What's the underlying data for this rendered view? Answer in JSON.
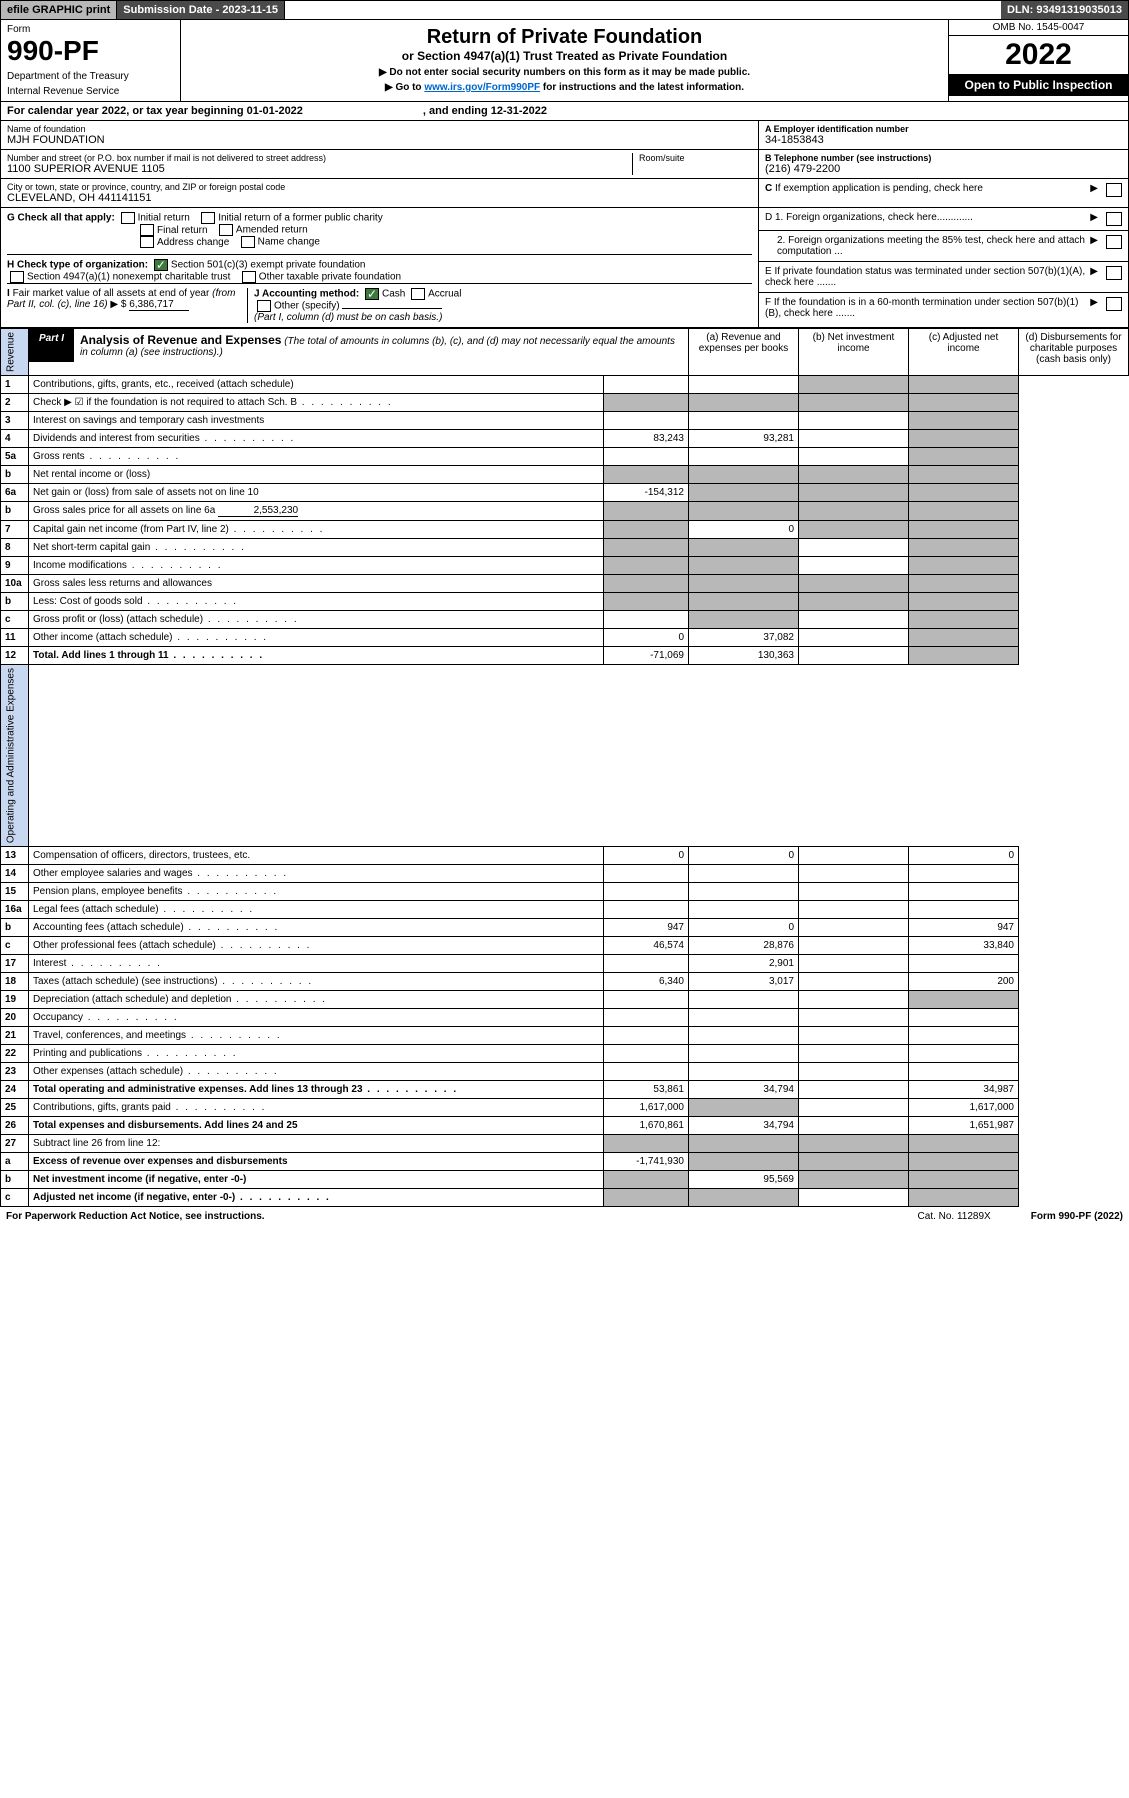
{
  "topbar": {
    "efile": "efile GRAPHIC print",
    "subdate_lbl": "Submission Date - 2023-11-15",
    "dln": "DLN: 93491319035013"
  },
  "hdr": {
    "form": "Form",
    "num": "990-PF",
    "dept1": "Department of the Treasury",
    "dept2": "Internal Revenue Service",
    "title": "Return of Private Foundation",
    "sub": "or Section 4947(a)(1) Trust Treated as Private Foundation",
    "instr1": "▶ Do not enter social security numbers on this form as it may be made public.",
    "instr2_pre": "▶ Go to ",
    "instr2_link": "www.irs.gov/Form990PF",
    "instr2_post": " for instructions and the latest information.",
    "omb": "OMB No. 1545-0047",
    "year": "2022",
    "open": "Open to Public Inspection"
  },
  "cal": {
    "text_a": "For calendar year 2022, or tax year beginning 01-01-2022",
    "text_b": ", and ending 12-31-2022"
  },
  "id": {
    "name_lbl": "Name of foundation",
    "name": "MJH FOUNDATION",
    "addr_lbl": "Number and street (or P.O. box number if mail is not delivered to street address)",
    "addr": "1100 SUPERIOR AVENUE 1105",
    "room_lbl": "Room/suite",
    "city_lbl": "City or town, state or province, country, and ZIP or foreign postal code",
    "city": "CLEVELAND, OH  441141151",
    "a_lbl": "A Employer identification number",
    "a_val": "34-1853843",
    "b_lbl": "B Telephone number (see instructions)",
    "b_val": "(216) 479-2200",
    "c_lbl": "C If exemption application is pending, check here",
    "d1": "D 1. Foreign organizations, check here.............",
    "d2": "2. Foreign organizations meeting the 85% test, check here and attach computation ...",
    "e": "E  If private foundation status was terminated under section 507(b)(1)(A), check here .......",
    "f": "F  If the foundation is in a 60-month termination under section 507(b)(1)(B), check here .......",
    "g_lbl": "G Check all that apply:",
    "g_opts": [
      "Initial return",
      "Initial return of a former public charity",
      "Final return",
      "Amended return",
      "Address change",
      "Name change"
    ],
    "h_lbl": "H Check type of organization:",
    "h_opt1": "Section 501(c)(3) exempt private foundation",
    "h_opt2": "Section 4947(a)(1) nonexempt charitable trust",
    "h_opt3": "Other taxable private foundation",
    "i_lbl": "I Fair market value of all assets at end of year (from Part II, col. (c), line 16) ▶ $",
    "i_val": "6,386,717",
    "j_lbl": "J Accounting method:",
    "j_cash": "Cash",
    "j_accr": "Accrual",
    "j_other": "Other (specify)",
    "j_note": "(Part I, column (d) must be on cash basis.)"
  },
  "part1": {
    "lbl": "Part I",
    "ttl": "Analysis of Revenue and Expenses",
    "ttl_note": "(The total of amounts in columns (b), (c), and (d) may not necessarily equal the amounts in column (a) (see instructions).)",
    "col_a": "(a) Revenue and expenses per books",
    "col_b": "(b) Net investment income",
    "col_c": "(c) Adjusted net income",
    "col_d": "(d) Disbursements for charitable purposes (cash basis only)",
    "rev_lbl": "Revenue",
    "exp_lbl": "Operating and Administrative Expenses"
  },
  "rows": [
    {
      "ln": "1",
      "desc": "Contributions, gifts, grants, etc., received (attach schedule)",
      "a": "",
      "b": "",
      "c": "shade",
      "d": "shade"
    },
    {
      "ln": "2",
      "desc": "Check ▶ ☑ if the foundation is not required to attach Sch. B",
      "a": "shade",
      "b": "shade",
      "c": "shade",
      "d": "shade",
      "dots": true
    },
    {
      "ln": "3",
      "desc": "Interest on savings and temporary cash investments",
      "a": "",
      "b": "",
      "c": "",
      "d": "shade"
    },
    {
      "ln": "4",
      "desc": "Dividends and interest from securities",
      "a": "83,243",
      "b": "93,281",
      "c": "",
      "d": "shade",
      "dots": true
    },
    {
      "ln": "5a",
      "desc": "Gross rents",
      "a": "",
      "b": "",
      "c": "",
      "d": "shade",
      "dots": true
    },
    {
      "ln": "b",
      "desc": "Net rental income or (loss)",
      "a": "shade",
      "b": "shade",
      "c": "shade",
      "d": "shade",
      "inset": true
    },
    {
      "ln": "6a",
      "desc": "Net gain or (loss) from sale of assets not on line 10",
      "a": "-154,312",
      "b": "shade",
      "c": "shade",
      "d": "shade"
    },
    {
      "ln": "b",
      "desc": "Gross sales price for all assets on line 6a",
      "a": "shade",
      "b": "shade",
      "c": "shade",
      "d": "shade",
      "inset": true,
      "extra": "2,553,230"
    },
    {
      "ln": "7",
      "desc": "Capital gain net income (from Part IV, line 2)",
      "a": "shade",
      "b": "0",
      "c": "shade",
      "d": "shade",
      "dots": true
    },
    {
      "ln": "8",
      "desc": "Net short-term capital gain",
      "a": "shade",
      "b": "shade",
      "c": "",
      "d": "shade",
      "dots": true
    },
    {
      "ln": "9",
      "desc": "Income modifications",
      "a": "shade",
      "b": "shade",
      "c": "",
      "d": "shade",
      "dots": true
    },
    {
      "ln": "10a",
      "desc": "Gross sales less returns and allowances",
      "a": "shade",
      "b": "shade",
      "c": "shade",
      "d": "shade",
      "inset": true
    },
    {
      "ln": "b",
      "desc": "Less: Cost of goods sold",
      "a": "shade",
      "b": "shade",
      "c": "shade",
      "d": "shade",
      "inset": true,
      "dots": true
    },
    {
      "ln": "c",
      "desc": "Gross profit or (loss) (attach schedule)",
      "a": "",
      "b": "shade",
      "c": "",
      "d": "shade",
      "dots": true
    },
    {
      "ln": "11",
      "desc": "Other income (attach schedule)",
      "a": "0",
      "b": "37,082",
      "c": "",
      "d": "shade",
      "dots": true
    },
    {
      "ln": "12",
      "desc": "Total. Add lines 1 through 11",
      "a": "-71,069",
      "b": "130,363",
      "c": "",
      "d": "shade",
      "bold": true,
      "dots": true
    }
  ],
  "exp_rows": [
    {
      "ln": "13",
      "desc": "Compensation of officers, directors, trustees, etc.",
      "a": "0",
      "b": "0",
      "c": "",
      "d": "0"
    },
    {
      "ln": "14",
      "desc": "Other employee salaries and wages",
      "a": "",
      "b": "",
      "c": "",
      "d": "",
      "dots": true
    },
    {
      "ln": "15",
      "desc": "Pension plans, employee benefits",
      "a": "",
      "b": "",
      "c": "",
      "d": "",
      "dots": true
    },
    {
      "ln": "16a",
      "desc": "Legal fees (attach schedule)",
      "a": "",
      "b": "",
      "c": "",
      "d": "",
      "dots": true
    },
    {
      "ln": "b",
      "desc": "Accounting fees (attach schedule)",
      "a": "947",
      "b": "0",
      "c": "",
      "d": "947",
      "dots": true
    },
    {
      "ln": "c",
      "desc": "Other professional fees (attach schedule)",
      "a": "46,574",
      "b": "28,876",
      "c": "",
      "d": "33,840",
      "dots": true
    },
    {
      "ln": "17",
      "desc": "Interest",
      "a": "",
      "b": "2,901",
      "c": "",
      "d": "",
      "dots": true
    },
    {
      "ln": "18",
      "desc": "Taxes (attach schedule) (see instructions)",
      "a": "6,340",
      "b": "3,017",
      "c": "",
      "d": "200",
      "dots": true
    },
    {
      "ln": "19",
      "desc": "Depreciation (attach schedule) and depletion",
      "a": "",
      "b": "",
      "c": "",
      "d": "shade",
      "dots": true
    },
    {
      "ln": "20",
      "desc": "Occupancy",
      "a": "",
      "b": "",
      "c": "",
      "d": "",
      "dots": true
    },
    {
      "ln": "21",
      "desc": "Travel, conferences, and meetings",
      "a": "",
      "b": "",
      "c": "",
      "d": "",
      "dots": true
    },
    {
      "ln": "22",
      "desc": "Printing and publications",
      "a": "",
      "b": "",
      "c": "",
      "d": "",
      "dots": true
    },
    {
      "ln": "23",
      "desc": "Other expenses (attach schedule)",
      "a": "",
      "b": "",
      "c": "",
      "d": "",
      "dots": true
    },
    {
      "ln": "24",
      "desc": "Total operating and administrative expenses. Add lines 13 through 23",
      "a": "53,861",
      "b": "34,794",
      "c": "",
      "d": "34,987",
      "bold": true,
      "dots": true
    },
    {
      "ln": "25",
      "desc": "Contributions, gifts, grants paid",
      "a": "1,617,000",
      "b": "shade",
      "c": "",
      "d": "1,617,000",
      "dots": true
    },
    {
      "ln": "26",
      "desc": "Total expenses and disbursements. Add lines 24 and 25",
      "a": "1,670,861",
      "b": "34,794",
      "c": "",
      "d": "1,651,987",
      "bold": true
    },
    {
      "ln": "27",
      "desc": "Subtract line 26 from line 12:",
      "a": "shade",
      "b": "shade",
      "c": "shade",
      "d": "shade"
    },
    {
      "ln": "a",
      "desc": "Excess of revenue over expenses and disbursements",
      "a": "-1,741,930",
      "b": "shade",
      "c": "shade",
      "d": "shade",
      "bold": true
    },
    {
      "ln": "b",
      "desc": "Net investment income (if negative, enter -0-)",
      "a": "shade",
      "b": "95,569",
      "c": "shade",
      "d": "shade",
      "bold": true
    },
    {
      "ln": "c",
      "desc": "Adjusted net income (if negative, enter -0-)",
      "a": "shade",
      "b": "shade",
      "c": "",
      "d": "shade",
      "bold": true,
      "dots": true
    }
  ],
  "foot": {
    "pra": "For Paperwork Reduction Act Notice, see instructions.",
    "cat": "Cat. No. 11289X",
    "form": "Form 990-PF (2022)"
  }
}
